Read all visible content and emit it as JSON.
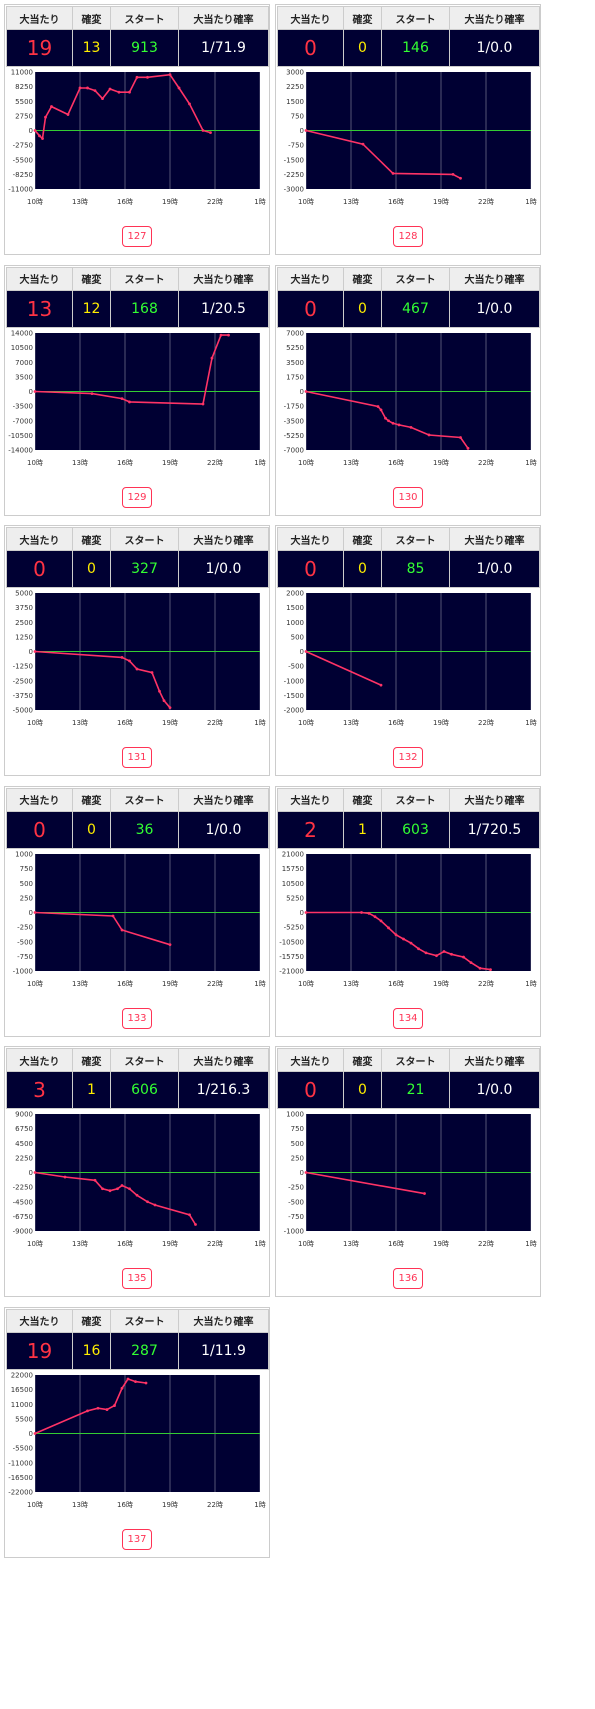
{
  "headers": {
    "hits": "大当たり",
    "kakuhen": "確変",
    "start": "スタート",
    "prob": "大当たり確率"
  },
  "colors": {
    "plot_bg": "#000033",
    "line": "#ff3366",
    "zero_line": "#33cc33",
    "grid": "#ffffff"
  },
  "machines": [
    {
      "id": "127",
      "hits": "19",
      "kakuhen": "13",
      "start": "913",
      "prob": "1/71.9"
    },
    {
      "id": "128",
      "hits": "0",
      "kakuhen": "0",
      "start": "146",
      "prob": "1/0.0"
    },
    {
      "id": "129",
      "hits": "13",
      "kakuhen": "12",
      "start": "168",
      "prob": "1/20.5"
    },
    {
      "id": "130",
      "hits": "0",
      "kakuhen": "0",
      "start": "467",
      "prob": "1/0.0"
    },
    {
      "id": "131",
      "hits": "0",
      "kakuhen": "0",
      "start": "327",
      "prob": "1/0.0"
    },
    {
      "id": "132",
      "hits": "0",
      "kakuhen": "0",
      "start": "85",
      "prob": "1/0.0"
    },
    {
      "id": "133",
      "hits": "0",
      "kakuhen": "0",
      "start": "36",
      "prob": "1/0.0"
    },
    {
      "id": "134",
      "hits": "2",
      "kakuhen": "1",
      "start": "603",
      "prob": "1/720.5"
    },
    {
      "id": "135",
      "hits": "3",
      "kakuhen": "1",
      "start": "606",
      "prob": "1/216.3"
    },
    {
      "id": "136",
      "hits": "0",
      "kakuhen": "0",
      "start": "21",
      "prob": "1/0.0"
    },
    {
      "id": "137",
      "hits": "19",
      "kakuhen": "16",
      "start": "287",
      "prob": "1/11.9"
    }
  ],
  "chart_data": [
    {
      "type": "line",
      "x_ticks": [
        "10時",
        "13時",
        "16時",
        "19時",
        "22時",
        "1時"
      ],
      "y_ticks": [
        "11000",
        "8250",
        "5500",
        "2750",
        "0",
        "-2750",
        "-5500",
        "-8250",
        "-11000"
      ],
      "ylim": [
        -11000,
        11000
      ],
      "xlim": [
        10,
        25
      ],
      "x": [
        10,
        10.3,
        10.5,
        10.7,
        11.1,
        12.2,
        13,
        13.5,
        14,
        14.5,
        15,
        15.6,
        16.3,
        16.8,
        17.5,
        19,
        19.6,
        20.3,
        21.2,
        21.7
      ],
      "y": [
        0,
        -1000,
        -1500,
        2500,
        4500,
        3000,
        8000,
        8000,
        7500,
        6000,
        7800,
        7200,
        7200,
        10000,
        10000,
        10500,
        8000,
        5000,
        0,
        -400
      ]
    },
    {
      "type": "line",
      "x_ticks": [
        "10時",
        "13時",
        "16時",
        "19時",
        "22時",
        "1時"
      ],
      "y_ticks": [
        "3000",
        "2250",
        "1500",
        "750",
        "0",
        "-750",
        "-1500",
        "-2250",
        "-3000"
      ],
      "ylim": [
        -3000,
        3000
      ],
      "xlim": [
        10,
        25
      ],
      "x": [
        10,
        13.8,
        15.8,
        19.8,
        20.3
      ],
      "y": [
        0,
        -700,
        -2200,
        -2250,
        -2450
      ]
    },
    {
      "type": "line",
      "x_ticks": [
        "10時",
        "13時",
        "16時",
        "19時",
        "22時",
        "1時"
      ],
      "y_ticks": [
        "14000",
        "10500",
        "7000",
        "3500",
        "0",
        "-3500",
        "-7000",
        "-10500",
        "-14000"
      ],
      "ylim": [
        -14000,
        14000
      ],
      "xlim": [
        10,
        25
      ],
      "x": [
        10,
        13.8,
        15.8,
        16.3,
        21.2,
        21.8,
        22.4,
        22.9
      ],
      "y": [
        0,
        -500,
        -1700,
        -2500,
        -3000,
        8000,
        13500,
        13500
      ]
    },
    {
      "type": "line",
      "x_ticks": [
        "10時",
        "13時",
        "16時",
        "19時",
        "22時",
        "1時"
      ],
      "y_ticks": [
        "7000",
        "5250",
        "3500",
        "1750",
        "0",
        "-1750",
        "-3500",
        "-5250",
        "-7000"
      ],
      "ylim": [
        -7000,
        7000
      ],
      "xlim": [
        10,
        25
      ],
      "x": [
        10,
        14.8,
        15,
        15.3,
        15.5,
        15.8,
        16.2,
        17,
        18.2,
        20.3,
        20.8
      ],
      "y": [
        0,
        -1800,
        -2200,
        -3200,
        -3500,
        -3800,
        -4000,
        -4300,
        -5200,
        -5500,
        -6800
      ]
    },
    {
      "type": "line",
      "x_ticks": [
        "10時",
        "13時",
        "16時",
        "19時",
        "22時",
        "1時"
      ],
      "y_ticks": [
        "5000",
        "3750",
        "2500",
        "1250",
        "0",
        "-1250",
        "-2500",
        "-3750",
        "-5000"
      ],
      "ylim": [
        -5000,
        5000
      ],
      "xlim": [
        10,
        25
      ],
      "x": [
        10,
        15.8,
        16.3,
        16.8,
        17.8,
        18.3,
        18.6,
        19
      ],
      "y": [
        0,
        -500,
        -800,
        -1500,
        -1800,
        -3400,
        -4200,
        -4800
      ]
    },
    {
      "type": "line",
      "x_ticks": [
        "10時",
        "13時",
        "16時",
        "19時",
        "22時",
        "1時"
      ],
      "y_ticks": [
        "2000",
        "1500",
        "1000",
        "500",
        "0",
        "-500",
        "-1000",
        "-1500",
        "-2000"
      ],
      "ylim": [
        -2000,
        2000
      ],
      "xlim": [
        10,
        25
      ],
      "x": [
        10,
        15
      ],
      "y": [
        0,
        -1150
      ]
    },
    {
      "type": "line",
      "x_ticks": [
        "10時",
        "13時",
        "16時",
        "19時",
        "22時",
        "1時"
      ],
      "y_ticks": [
        "1000",
        "750",
        "500",
        "250",
        "0",
        "-250",
        "-500",
        "-750",
        "-1000"
      ],
      "ylim": [
        -1000,
        1000
      ],
      "xlim": [
        10,
        25
      ],
      "x": [
        10,
        15.2,
        15.8,
        19
      ],
      "y": [
        0,
        -60,
        -300,
        -550
      ]
    },
    {
      "type": "line",
      "x_ticks": [
        "10時",
        "13時",
        "16時",
        "19時",
        "22時",
        "1時"
      ],
      "y_ticks": [
        "21000",
        "15750",
        "10500",
        "5250",
        "0",
        "-5250",
        "-10500",
        "-15750",
        "-21000"
      ],
      "ylim": [
        -21000,
        21000
      ],
      "xlim": [
        10,
        25
      ],
      "x": [
        10,
        13.7,
        14.2,
        14.6,
        15,
        15.5,
        16,
        16.5,
        17,
        17.5,
        18,
        18.7,
        19.2,
        19.7,
        20.5,
        21,
        21.6,
        22.3
      ],
      "y": [
        0,
        0,
        -300,
        -1500,
        -3000,
        -5500,
        -8000,
        -9500,
        -11000,
        -13000,
        -14500,
        -15500,
        -14000,
        -15000,
        -16000,
        -18000,
        -20000,
        -20500
      ]
    },
    {
      "type": "line",
      "x_ticks": [
        "10時",
        "13時",
        "16時",
        "19時",
        "22時",
        "1時"
      ],
      "y_ticks": [
        "9000",
        "6750",
        "4500",
        "2250",
        "0",
        "-2250",
        "-4500",
        "-6750",
        "-9000"
      ],
      "ylim": [
        -9000,
        9000
      ],
      "xlim": [
        10,
        25
      ],
      "x": [
        10,
        12,
        14,
        14.5,
        15,
        15.5,
        15.8,
        16.3,
        16.8,
        17.5,
        18,
        20.3,
        20.7
      ],
      "y": [
        0,
        -700,
        -1200,
        -2500,
        -2800,
        -2500,
        -2000,
        -2500,
        -3500,
        -4500,
        -5000,
        -6500,
        -8000
      ]
    },
    {
      "type": "line",
      "x_ticks": [
        "10時",
        "13時",
        "16時",
        "19時",
        "22時",
        "1時"
      ],
      "y_ticks": [
        "1000",
        "750",
        "500",
        "250",
        "0",
        "-250",
        "-500",
        "-750",
        "-1000"
      ],
      "ylim": [
        -1000,
        1000
      ],
      "xlim": [
        10,
        25
      ],
      "x": [
        10,
        17.9
      ],
      "y": [
        0,
        -360
      ]
    },
    {
      "type": "line",
      "x_ticks": [
        "10時",
        "13時",
        "16時",
        "19時",
        "22時",
        "1時"
      ],
      "y_ticks": [
        "22000",
        "16500",
        "11000",
        "5500",
        "0",
        "-5500",
        "-11000",
        "-16500",
        "-22000"
      ],
      "ylim": [
        -22000,
        22000
      ],
      "xlim": [
        10,
        25
      ],
      "x": [
        10,
        13.5,
        14.2,
        14.8,
        15.3,
        15.8,
        16.2,
        16.7,
        17.4
      ],
      "y": [
        0,
        8500,
        9500,
        9000,
        10500,
        17000,
        20500,
        19500,
        19000
      ]
    }
  ]
}
